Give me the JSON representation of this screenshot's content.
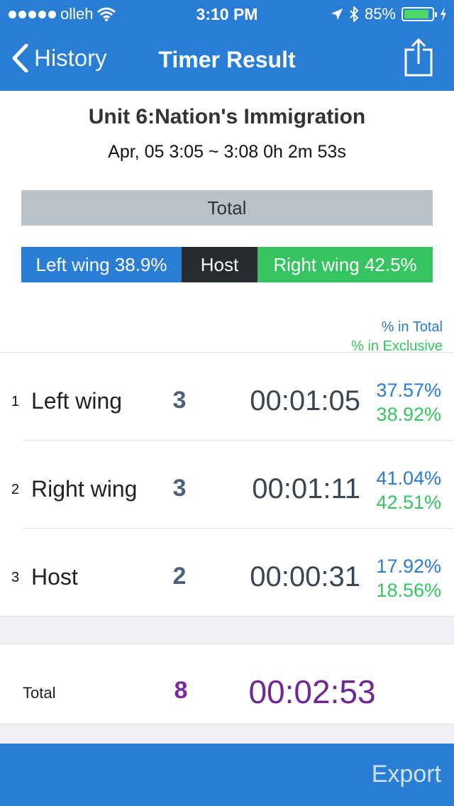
{
  "status_bar": {
    "carrier": "olleh",
    "time": "3:10 PM",
    "battery": "85%"
  },
  "nav": {
    "back_label": "History",
    "title": "Timer Result"
  },
  "session": {
    "title": "Unit 6:Nation's Immigration",
    "subtitle": "Apr, 05 3:05 ~ 3:08 0h 2m 53s"
  },
  "total_bar_label": "Total",
  "split_bar": {
    "left": "Left wing 38.9%",
    "host": "Host",
    "right": "Right wing 42.5%"
  },
  "legend": {
    "total": "% in Total",
    "exclusive": "% in Exclusive"
  },
  "rows": [
    {
      "index": "1",
      "name": "Left wing",
      "count": "3",
      "duration": "00:01:05",
      "pct_total": "37.57%",
      "pct_exclusive": "38.92%"
    },
    {
      "index": "2",
      "name": "Right wing",
      "count": "3",
      "duration": "00:01:11",
      "pct_total": "41.04%",
      "pct_exclusive": "42.51%"
    },
    {
      "index": "3",
      "name": "Host",
      "count": "2",
      "duration": "00:00:31",
      "pct_total": "17.92%",
      "pct_exclusive": "18.56%"
    }
  ],
  "totals": {
    "label": "Total",
    "count": "8",
    "duration": "00:02:53"
  },
  "footer": {
    "export_label": "Export"
  },
  "colors": {
    "nav_blue": "#2a7dd4",
    "left_wing": "#2a7dd4",
    "host": "#262b30",
    "right_wing": "#35c460",
    "total_purple": "#6e2794"
  }
}
